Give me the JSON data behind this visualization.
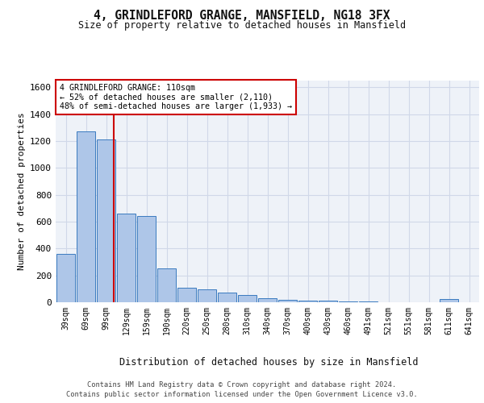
{
  "title": "4, GRINDLEFORD GRANGE, MANSFIELD, NG18 3FX",
  "subtitle": "Size of property relative to detached houses in Mansfield",
  "xlabel": "Distribution of detached houses by size in Mansfield",
  "ylabel": "Number of detached properties",
  "footer_line1": "Contains HM Land Registry data © Crown copyright and database right 2024.",
  "footer_line2": "Contains public sector information licensed under the Open Government Licence v3.0.",
  "annotation_line1": "4 GRINDLEFORD GRANGE: 110sqm",
  "annotation_line2": "← 52% of detached houses are smaller (2,110)",
  "annotation_line3": "48% of semi-detached houses are larger (1,933) →",
  "property_size": 110,
  "categories": [
    "39sqm",
    "69sqm",
    "99sqm",
    "129sqm",
    "159sqm",
    "190sqm",
    "220sqm",
    "250sqm",
    "280sqm",
    "310sqm",
    "340sqm",
    "370sqm",
    "400sqm",
    "430sqm",
    "460sqm",
    "491sqm",
    "521sqm",
    "551sqm",
    "581sqm",
    "611sqm",
    "641sqm"
  ],
  "values": [
    360,
    1270,
    1210,
    660,
    640,
    250,
    110,
    95,
    70,
    55,
    30,
    20,
    15,
    12,
    8,
    5,
    0,
    0,
    0,
    25,
    0
  ],
  "bar_color": "#aec6e8",
  "bar_edge_color": "#3a7abf",
  "vline_color": "#cc0000",
  "grid_color": "#d0d8e8",
  "background_color": "#eef2f8",
  "ylim": [
    0,
    1650
  ],
  "yticks": [
    0,
    200,
    400,
    600,
    800,
    1000,
    1200,
    1400,
    1600
  ]
}
